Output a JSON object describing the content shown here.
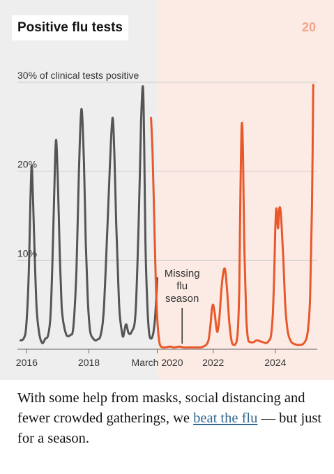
{
  "header": {
    "title": "Positive flu tests",
    "page_number": "20"
  },
  "caption": {
    "before_link": "With some help from masks, social distancing and fewer crowded gatherings, we ",
    "link_text": "beat the flu",
    "after_link": " — but just for a season."
  },
  "colors": {
    "pre_pandemic_background": "#eeeeee",
    "pandemic_background": "#fcebe5",
    "pre_pandemic_line": "#555555",
    "pandemic_line": "#e8582b",
    "page_number": "#f4a58a",
    "link": "#326891"
  },
  "chart_data": {
    "type": "line",
    "title": "Positive flu tests",
    "ylabel": "30% of clinical tests positive",
    "y_ticks": [
      {
        "value": 10,
        "label": "10%"
      },
      {
        "value": 20,
        "label": "20%"
      },
      {
        "value": 30,
        "label": "30% of clinical tests positive"
      }
    ],
    "x_ticks": [
      {
        "value": 2016,
        "label": "2016"
      },
      {
        "value": 2018,
        "label": "2018"
      },
      {
        "value": 2020.2,
        "label": "March 2020"
      },
      {
        "value": 2022,
        "label": "2022"
      },
      {
        "value": 2024,
        "label": "2024"
      }
    ],
    "xlim": [
      2015.7,
      2025.35
    ],
    "ylim": [
      0,
      30
    ],
    "grid": true,
    "legend": "none",
    "shaded_regions": [
      {
        "from": 2015.7,
        "to": 2020.2,
        "color": "#eeeeee"
      },
      {
        "from": 2020.2,
        "to": 2025.35,
        "color": "#fcebe5"
      }
    ],
    "annotations": [
      {
        "text": "Missing flu season",
        "lines": [
          "Missing",
          "flu",
          "season"
        ],
        "x": 2021.0,
        "y": 0.4
      }
    ],
    "series": [
      {
        "color": "#555555",
        "x": [
          2015.8,
          2015.9,
          2015.98,
          2016.06,
          2016.12,
          2016.16,
          2016.2,
          2016.26,
          2016.32,
          2016.4,
          2016.5,
          2016.6,
          2016.68,
          2016.76,
          2016.82,
          2016.88,
          2016.94,
          2017.0,
          2017.06,
          2017.1,
          2017.13,
          2017.18,
          2017.24,
          2017.3,
          2017.4,
          2017.5,
          2017.6,
          2017.68,
          2017.76,
          2017.84,
          2017.9,
          2017.96,
          2018.0,
          2018.04,
          2018.08,
          2018.14,
          2018.2,
          2018.28,
          2018.38,
          2018.48,
          2018.6,
          2018.68,
          2018.76,
          2018.82,
          2018.88,
          2018.94,
          2018.98,
          2019.02,
          2019.06,
          2019.1,
          2019.14,
          2019.2,
          2019.28,
          2019.38,
          2019.5,
          2019.6,
          2019.68,
          2019.74,
          2019.78,
          2019.82,
          2019.88,
          2019.94,
          2020.0,
          2020.06,
          2020.1,
          2020.14,
          2020.2
        ],
        "values": [
          1.0,
          1.2,
          2.5,
          8.0,
          17.0,
          20.6,
          17.0,
          10.0,
          4.5,
          1.8,
          0.7,
          1.2,
          1.5,
          3.5,
          9.0,
          17.0,
          23.5,
          19.0,
          11.0,
          7.0,
          4.5,
          3.0,
          2.0,
          1.5,
          1.6,
          2.5,
          9.0,
          20.0,
          27.0,
          21.0,
          12.0,
          6.0,
          3.5,
          2.0,
          1.5,
          1.2,
          1.0,
          1.1,
          1.6,
          4.5,
          14.0,
          21.0,
          26.0,
          22.0,
          14.0,
          8.0,
          4.5,
          3.0,
          2.0,
          1.4,
          2.0,
          2.8,
          1.8,
          2.0,
          4.0,
          14.0,
          25.5,
          29.5,
          23.0,
          12.0,
          5.0,
          1.8,
          1.2,
          1.6,
          2.5,
          4.0,
          8.0
        ]
      },
      {
        "color": "#e8582b",
        "x": [
          2020.0,
          2020.05,
          2020.1,
          2020.15,
          2020.2,
          2020.26,
          2020.32,
          2020.45,
          2020.6,
          2020.75,
          2020.9,
          2021.05,
          2021.2,
          2021.35,
          2021.5,
          2021.6,
          2021.68,
          2021.74,
          2021.8,
          2021.86,
          2021.92,
          2021.96,
          2022.0,
          2022.05,
          2022.1,
          2022.14,
          2022.2,
          2022.26,
          2022.32,
          2022.38,
          2022.44,
          2022.52,
          2022.6,
          2022.68,
          2022.72,
          2022.76,
          2022.8,
          2022.84,
          2022.88,
          2022.92,
          2022.96,
          2023.0,
          2023.06,
          2023.12,
          2023.2,
          2023.3,
          2023.4,
          2023.5,
          2023.6,
          2023.7,
          2023.78,
          2023.86,
          2023.92,
          2023.96,
          2024.0,
          2024.03,
          2024.06,
          2024.09,
          2024.12,
          2024.16,
          2024.2,
          2024.26,
          2024.32,
          2024.4,
          2024.5,
          2024.6,
          2024.7,
          2024.8,
          2024.9,
          2025.0,
          2025.06,
          2025.12,
          2025.18,
          2025.22
        ],
        "values": [
          26.0,
          22.0,
          15.0,
          8.0,
          3.5,
          1.0,
          0.3,
          0.2,
          0.3,
          0.2,
          0.3,
          0.2,
          0.2,
          0.2,
          0.2,
          0.2,
          0.3,
          0.4,
          0.6,
          1.2,
          3.0,
          4.5,
          5.0,
          4.0,
          2.5,
          2.0,
          3.5,
          6.5,
          8.5,
          9.0,
          7.0,
          3.0,
          0.8,
          0.5,
          0.6,
          1.0,
          2.5,
          7.0,
          18.0,
          25.3,
          22.0,
          12.0,
          4.0,
          1.2,
          0.8,
          0.8,
          1.0,
          0.9,
          0.8,
          0.7,
          0.9,
          1.5,
          4.0,
          8.0,
          13.5,
          15.8,
          14.8,
          13.6,
          15.6,
          15.8,
          14.0,
          10.0,
          5.0,
          2.0,
          0.9,
          0.6,
          0.5,
          0.5,
          0.6,
          1.2,
          2.5,
          6.0,
          16.0,
          29.7
        ]
      }
    ]
  }
}
